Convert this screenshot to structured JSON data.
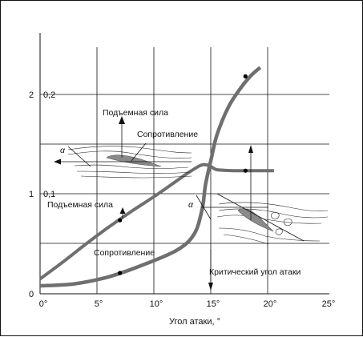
{
  "chart_data": {
    "type": "line",
    "xlabel": "Угол атаки, °",
    "x_ticks": [
      "0°",
      "5°",
      "10°",
      "15°",
      "20°",
      "25°"
    ],
    "x_tick_values": [
      0,
      5,
      10,
      15,
      20,
      25
    ],
    "xlim": [
      0,
      25
    ],
    "y_ticks_left": [
      "0",
      "1",
      "2"
    ],
    "y_ticks_right": [
      "0,1",
      "0,2"
    ],
    "y_tick_values": [
      0,
      1,
      2
    ],
    "ylim": [
      0,
      2.5
    ],
    "grid": true,
    "series": [
      {
        "name": "Подъемная сила",
        "x": [
          0,
          2,
          4,
          6,
          8,
          10,
          12,
          13,
          14,
          14.5,
          15,
          15.5,
          17,
          19,
          20.5
        ],
        "y": [
          0.15,
          0.32,
          0.5,
          0.67,
          0.83,
          0.98,
          1.14,
          1.22,
          1.29,
          1.3,
          1.28,
          1.25,
          1.24,
          1.24,
          1.24
        ]
      },
      {
        "name": "Сопротивление",
        "x": [
          0,
          3,
          6,
          9,
          12,
          13.5,
          14.2,
          14.5,
          15,
          15.5,
          16.5,
          17.5,
          18.5,
          19.3
        ],
        "y": [
          0.08,
          0.1,
          0.17,
          0.29,
          0.44,
          0.6,
          0.85,
          1.1,
          1.36,
          1.6,
          1.88,
          2.06,
          2.2,
          2.28
        ]
      }
    ],
    "markers": [
      {
        "x": 7,
        "y": 0.74,
        "series": "Подъемная сила"
      },
      {
        "x": 7,
        "y": 0.21,
        "series": "Сопротивление"
      },
      {
        "x": 18,
        "y": 1.24,
        "series": "Подъемная сила"
      },
      {
        "x": 18,
        "y": 2.19,
        "series": "Сопротивление"
      }
    ],
    "critical_angle": 14.5,
    "annotations": {
      "lift_top": "Подъемная сила",
      "drag_top": "Сопротивление",
      "lift_mid": "Подъемная сила",
      "drag_low": "Сопротивление",
      "critical": "Критический угол атаки",
      "alpha_1": "α",
      "alpha_2": "α"
    },
    "colors": {
      "curve": "#6f6f6f",
      "grid": "#111111",
      "airfoil": "#8a8a8a"
    }
  }
}
